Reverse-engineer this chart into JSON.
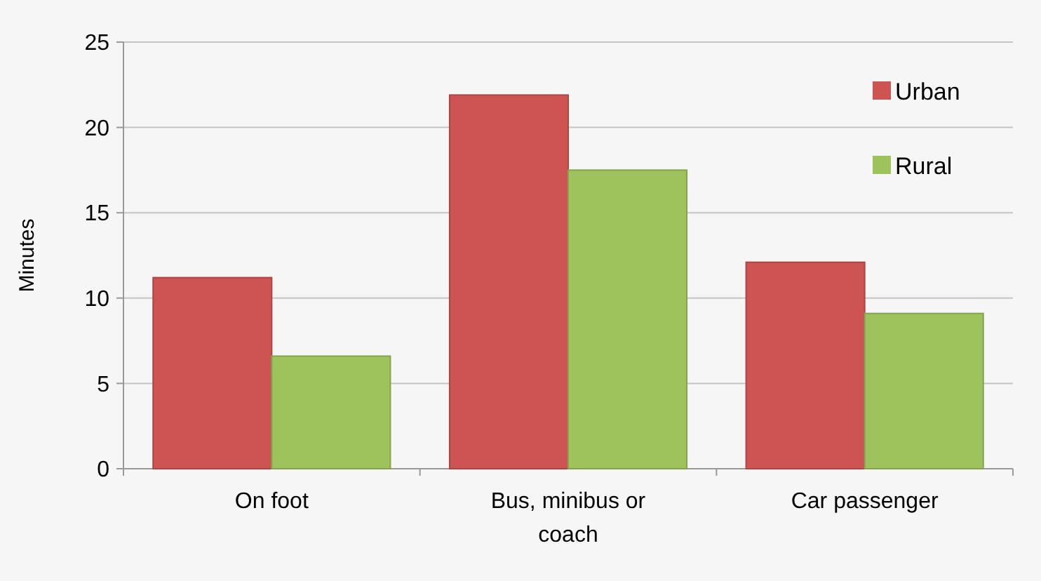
{
  "chart_data": {
    "type": "bar",
    "ylabel": "Minutes",
    "categories": [
      "On foot",
      "Bus, minibus or coach",
      "Car passenger"
    ],
    "series": [
      {
        "name": "Urban",
        "color": "#cd5453",
        "values": [
          11.2,
          21.9,
          12.1
        ]
      },
      {
        "name": "Rural",
        "color": "#9fc35c",
        "values": [
          6.6,
          17.5,
          9.1
        ]
      }
    ],
    "ylim": [
      0,
      25
    ],
    "yticks": [
      0,
      5,
      10,
      15,
      20,
      25
    ],
    "grid": "y",
    "legend": "top right"
  }
}
